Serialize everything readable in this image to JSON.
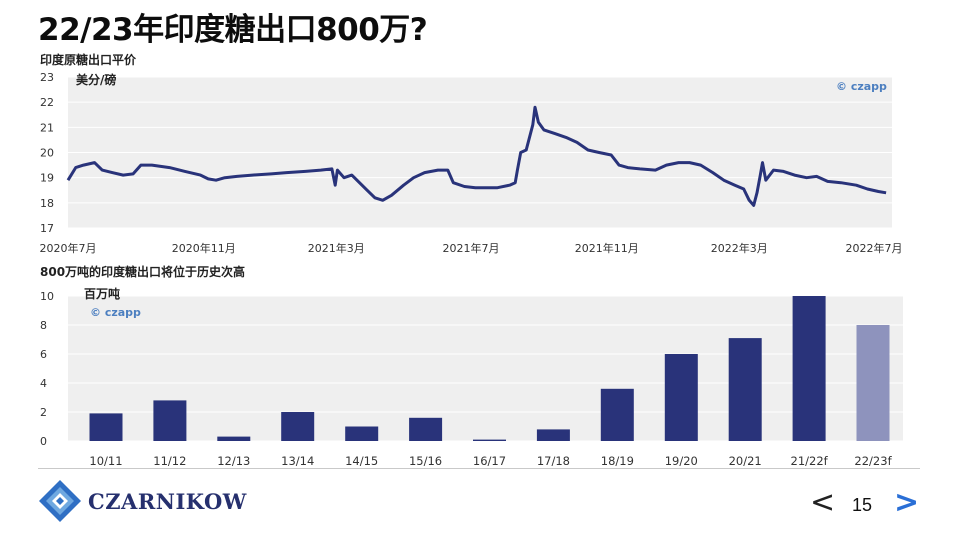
{
  "slide": {
    "title": "22/23年印度糖出口800万?",
    "page_number": "15",
    "prev_icon": "<",
    "next_icon": ">"
  },
  "logo": {
    "text": "CZARNIKOW",
    "icon": "czarnikow-diamond-logo"
  },
  "colors": {
    "accent": "#29337a",
    "forecast": "#8e93bd",
    "plot_bg": "#efefef",
    "grid": "#ffffff",
    "nav_next": "#2a6fd6"
  },
  "chart_data": [
    {
      "type": "line",
      "title": "印度原糖出口平价",
      "ylabel": "美分/磅",
      "watermark": "© czapp",
      "ylim": [
        17,
        23
      ],
      "yticks": [
        "23",
        "22",
        "21",
        "20",
        "19",
        "18",
        "17"
      ],
      "x_tick_labels": [
        "2020年7月",
        "2020年11月",
        "2021年3月",
        "2021年7月",
        "2021年11月",
        "2022年3月",
        "2022年7月"
      ],
      "x_tick_dates": [
        "2020-07-01",
        "2020-11-01",
        "2021-03-01",
        "2021-07-01",
        "2021-11-01",
        "2022-03-01",
        "2022-07-01"
      ],
      "series": [
        {
          "points": [
            [
              "2020-07-01",
              18.9
            ],
            [
              "2020-07-08",
              19.4
            ],
            [
              "2020-07-15",
              19.5
            ],
            [
              "2020-07-25",
              19.6
            ],
            [
              "2020-08-01",
              19.3
            ],
            [
              "2020-08-10",
              19.2
            ],
            [
              "2020-08-20",
              19.1
            ],
            [
              "2020-08-29",
              19.15
            ],
            [
              "2020-09-05",
              19.5
            ],
            [
              "2020-09-15",
              19.5
            ],
            [
              "2020-10-01",
              19.4
            ],
            [
              "2020-10-15",
              19.25
            ],
            [
              "2020-10-29",
              19.1
            ],
            [
              "2020-11-05",
              18.95
            ],
            [
              "2020-11-12",
              18.9
            ],
            [
              "2020-11-20",
              19.0
            ],
            [
              "2020-12-01",
              19.05
            ],
            [
              "2020-12-15",
              19.1
            ],
            [
              "2021-01-01",
              19.15
            ],
            [
              "2021-01-15",
              19.2
            ],
            [
              "2021-02-01",
              19.25
            ],
            [
              "2021-02-15",
              19.3
            ],
            [
              "2021-02-25",
              19.35
            ],
            [
              "2021-02-28",
              18.7
            ],
            [
              "2021-03-02",
              19.3
            ],
            [
              "2021-03-08",
              19.0
            ],
            [
              "2021-03-15",
              19.1
            ],
            [
              "2021-03-22",
              18.8
            ],
            [
              "2021-03-29",
              18.5
            ],
            [
              "2021-04-05",
              18.2
            ],
            [
              "2021-04-12",
              18.1
            ],
            [
              "2021-04-20",
              18.3
            ],
            [
              "2021-05-01",
              18.7
            ],
            [
              "2021-05-10",
              19.0
            ],
            [
              "2021-05-20",
              19.2
            ],
            [
              "2021-06-01",
              19.3
            ],
            [
              "2021-06-10",
              19.3
            ],
            [
              "2021-06-15",
              18.8
            ],
            [
              "2021-06-25",
              18.65
            ],
            [
              "2021-07-05",
              18.6
            ],
            [
              "2021-07-15",
              18.6
            ],
            [
              "2021-07-25",
              18.6
            ],
            [
              "2021-08-05",
              18.7
            ],
            [
              "2021-08-10",
              18.8
            ],
            [
              "2021-08-12",
              19.3
            ],
            [
              "2021-08-15",
              20.0
            ],
            [
              "2021-08-20",
              20.1
            ],
            [
              "2021-08-26",
              21.1
            ],
            [
              "2021-08-28",
              21.8
            ],
            [
              "2021-08-31",
              21.2
            ],
            [
              "2021-09-05",
              20.9
            ],
            [
              "2021-09-15",
              20.75
            ],
            [
              "2021-09-25",
              20.6
            ],
            [
              "2021-10-05",
              20.4
            ],
            [
              "2021-10-15",
              20.1
            ],
            [
              "2021-10-25",
              20.0
            ],
            [
              "2021-11-05",
              19.9
            ],
            [
              "2021-11-12",
              19.5
            ],
            [
              "2021-11-20",
              19.4
            ],
            [
              "2021-12-01",
              19.35
            ],
            [
              "2021-12-15",
              19.3
            ],
            [
              "2021-12-25",
              19.5
            ],
            [
              "2022-01-05",
              19.6
            ],
            [
              "2022-01-15",
              19.6
            ],
            [
              "2022-01-25",
              19.5
            ],
            [
              "2022-02-05",
              19.2
            ],
            [
              "2022-02-15",
              18.9
            ],
            [
              "2022-02-25",
              18.7
            ],
            [
              "2022-03-05",
              18.55
            ],
            [
              "2022-03-10",
              18.1
            ],
            [
              "2022-03-14",
              17.9
            ],
            [
              "2022-03-17",
              18.4
            ],
            [
              "2022-03-20",
              19.1
            ],
            [
              "2022-03-22",
              19.6
            ],
            [
              "2022-03-25",
              18.9
            ],
            [
              "2022-04-01",
              19.3
            ],
            [
              "2022-04-10",
              19.25
            ],
            [
              "2022-04-20",
              19.1
            ],
            [
              "2022-05-01",
              19.0
            ],
            [
              "2022-05-10",
              19.05
            ],
            [
              "2022-05-20",
              18.85
            ],
            [
              "2022-06-01",
              18.8
            ],
            [
              "2022-06-15",
              18.7
            ],
            [
              "2022-06-25",
              18.55
            ],
            [
              "2022-07-05",
              18.45
            ],
            [
              "2022-07-12",
              18.4
            ]
          ]
        }
      ]
    },
    {
      "type": "bar",
      "title": "800万吨的印度糖出口将位于历史次高",
      "ylabel": "百万吨",
      "watermark": "© czapp",
      "ylim": [
        0,
        10
      ],
      "yticks": [
        "10",
        "8",
        "6",
        "4",
        "2",
        "0"
      ],
      "categories": [
        "10/11",
        "11/12",
        "12/13",
        "13/14",
        "14/15",
        "15/16",
        "16/17",
        "17/18",
        "18/19",
        "19/20",
        "20/21",
        "21/22f",
        "22/23f"
      ],
      "values": [
        1.9,
        2.8,
        0.3,
        2.0,
        1.0,
        1.6,
        0.1,
        0.8,
        3.6,
        6.0,
        7.1,
        10.0,
        8.0
      ],
      "forecast_categories": [
        "22/23f"
      ]
    }
  ]
}
